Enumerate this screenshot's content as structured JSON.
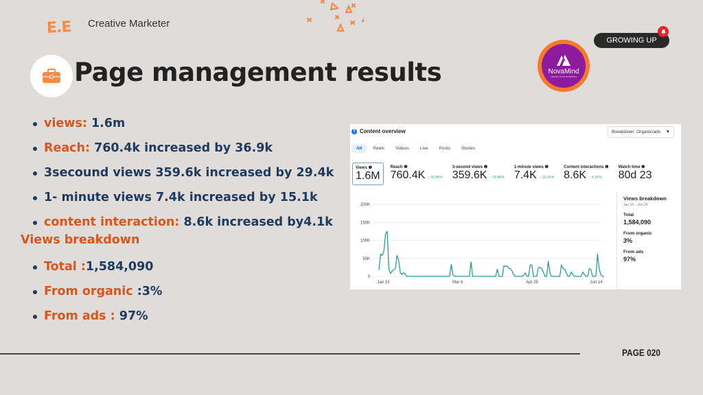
{
  "brand": {
    "logo_text": "E.E",
    "tagline": "Creative Marketer"
  },
  "header": {
    "title": "Page management results",
    "title_icon": "briefcase-icon",
    "badge_label": "GROWING UP",
    "badge_icon": "bell-icon",
    "partner_logo": {
      "name": "NovaMind",
      "subtitle": "UNLOCK YOUR POTENTIAL"
    }
  },
  "colors": {
    "accent": "#d9561a",
    "text": "#1f3a5f",
    "background": "#e0dcda",
    "chart_line": "#2a9b9b"
  },
  "bullets": [
    {
      "label": "views:",
      "value": " 1.6m"
    },
    {
      "label": "Reach:",
      "value": " 760.4k increased by 36.9k"
    },
    {
      "label": "",
      "value": "3secound views 359.6k increased by 29.4k"
    },
    {
      "label": "",
      "value": "1- minute views 7.4k increased by 15.1k"
    },
    {
      "label": "content interaction:",
      "value": " 8.6k increased by4.1k"
    }
  ],
  "breakdown": {
    "heading": "Views breakdown",
    "items": [
      {
        "label": "Total :",
        "value": "1,584,090"
      },
      {
        "label": "From organic ",
        "value": ":3%"
      },
      {
        "label": "From ads : ",
        "value": "97%"
      }
    ]
  },
  "footer": {
    "page_label": "PAGE 020"
  },
  "panel": {
    "title": "Content overview",
    "dropdown": "Breakdown: Organic/ads",
    "tabs": [
      "All",
      "Reels",
      "Videos",
      "Live",
      "Posts",
      "Stories"
    ],
    "active_tab": "All",
    "metrics": [
      {
        "label": "Views",
        "value": "1.6M",
        "delta": ""
      },
      {
        "label": "Reach",
        "value": "760.4K",
        "delta": "↑ 36.9K%"
      },
      {
        "label": "3-second views",
        "value": "359.6K",
        "delta": "↑ 29.4K%"
      },
      {
        "label": "1-minute views",
        "value": "7.4K",
        "delta": "↑ 15.1K%"
      },
      {
        "label": "Content interactions",
        "value": "8.6K",
        "delta": "↑ 4.1K%"
      },
      {
        "label": "Watch time",
        "value": "80d 23",
        "delta": ""
      }
    ],
    "side": {
      "title": "Views breakdown",
      "date_range": "Jan 15 – Jun 24",
      "total_label": "Total",
      "total_value": "1,584,090",
      "organic_label": "From organic",
      "organic_value": "3%",
      "ads_label": "From ads",
      "ads_value": "97%"
    }
  },
  "chart_data": {
    "type": "line",
    "title": "Views",
    "y_ticks": [
      "200K",
      "150K",
      "100K",
      "50K",
      "0"
    ],
    "ylim": [
      0,
      200000
    ],
    "x_ticks": [
      "Jan 15",
      "Mar 6",
      "Apr 25",
      "Jun 14"
    ],
    "grid": true,
    "series": [
      {
        "name": "Views",
        "values": [
          18000,
          62000,
          58000,
          70000,
          118000,
          125000,
          20000,
          8000,
          15000,
          18000,
          22000,
          58000,
          45000,
          10000,
          5000,
          10000,
          6000,
          0,
          0,
          0,
          0,
          0,
          0,
          0,
          0,
          0,
          0,
          0,
          0,
          0,
          0,
          0,
          0,
          0,
          0,
          0,
          0,
          0,
          0,
          0,
          0,
          0,
          0,
          0,
          33000,
          5000,
          0,
          0,
          0,
          0,
          0,
          0,
          0,
          0,
          0,
          0,
          40000,
          0,
          0,
          0,
          0,
          0,
          0,
          0,
          0,
          0,
          0,
          0,
          0,
          0,
          0,
          0,
          20000,
          0,
          0,
          0,
          30000,
          27000,
          29000,
          22000,
          22000,
          15000,
          5000,
          0,
          0,
          0,
          0,
          0,
          3000,
          10000,
          0,
          0,
          32000,
          31000,
          0,
          0,
          0,
          25000,
          25000,
          22000,
          12000,
          0,
          0,
          42000,
          10000,
          0,
          0,
          0,
          0,
          0,
          0,
          32000,
          22000,
          20000,
          10000,
          0,
          0,
          12000,
          5000,
          0,
          0,
          0,
          0,
          0,
          12000,
          5000,
          0,
          0,
          22000,
          18000,
          0,
          0,
          0,
          62000,
          20000,
          5000,
          0,
          0
        ]
      }
    ]
  }
}
